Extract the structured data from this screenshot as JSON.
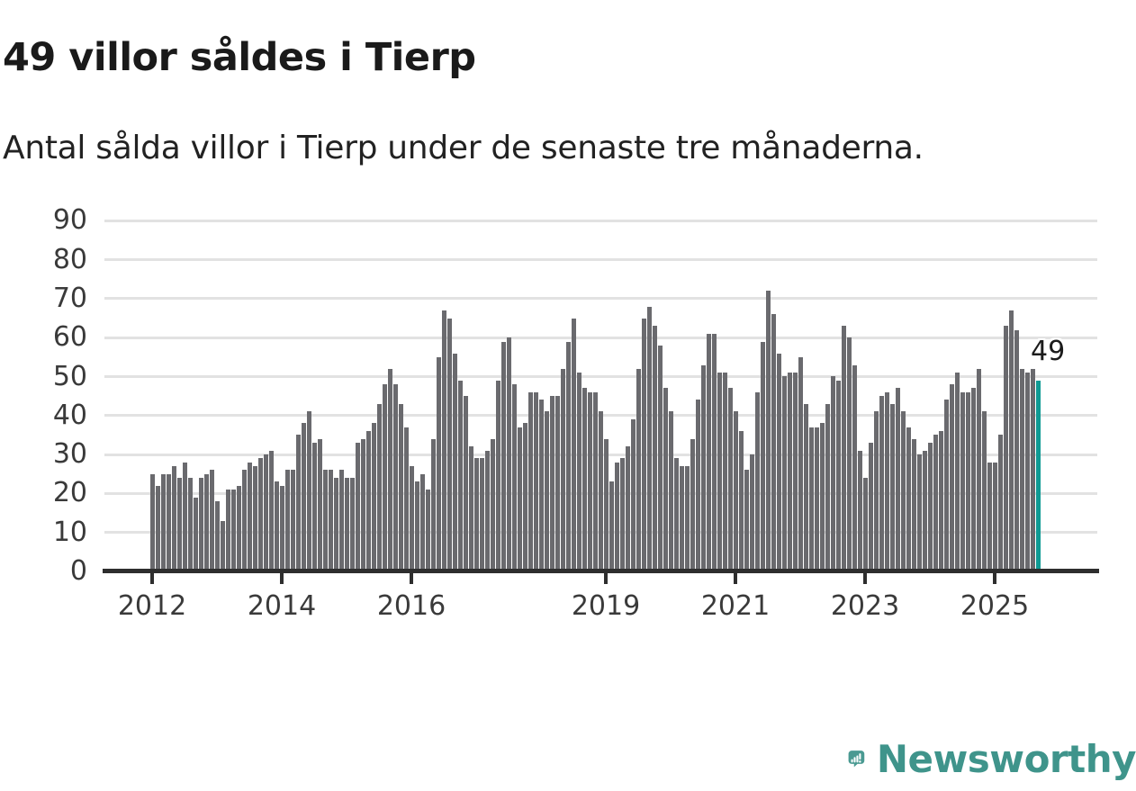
{
  "title": "49 villor såldes i Tierp",
  "subtitle": "Antal sålda villor i Tierp under de senaste tre månaderna.",
  "annotation": {
    "last_value_label": "49"
  },
  "colors": {
    "bar": "#6a6a6e",
    "highlight": "#0f9a94",
    "gridline": "#e2e2e2",
    "axis": "#2e2e2e",
    "logo_teal": "#4a9a92",
    "logo_text": "#3f948b"
  },
  "chart_data": {
    "type": "bar",
    "title": "49 villor såldes i Tierp",
    "subtitle": "Antal sålda villor i Tierp under de senaste tre månaderna.",
    "xlabel": "",
    "ylabel": "",
    "ylim": [
      0,
      90
    ],
    "y_ticks": [
      0,
      10,
      20,
      30,
      40,
      50,
      60,
      70,
      80,
      90
    ],
    "x_tick_years": [
      2012,
      2014,
      2016,
      2019,
      2021,
      2023,
      2025
    ],
    "grid": "horizontal",
    "legend": "none",
    "series_note": "rullande 3-månaderssumma per månad",
    "start_month": "2012-01",
    "years": [
      {
        "year": 2012,
        "values": [
          25,
          22,
          25,
          25,
          27,
          24,
          28,
          24,
          19,
          24,
          25,
          26
        ]
      },
      {
        "year": 2013,
        "values": [
          18,
          13,
          21,
          21,
          22,
          26,
          28,
          27,
          29,
          30,
          31,
          23
        ]
      },
      {
        "year": 2014,
        "values": [
          22,
          26,
          26,
          35,
          38,
          41,
          33,
          34,
          26,
          26,
          24,
          26
        ]
      },
      {
        "year": 2015,
        "values": [
          24,
          24,
          33,
          34,
          36,
          38,
          43,
          48,
          52,
          48,
          43,
          37
        ]
      },
      {
        "year": 2016,
        "values": [
          27,
          23,
          25,
          21,
          34,
          55,
          67,
          65,
          56,
          49,
          45,
          32
        ]
      },
      {
        "year": 2017,
        "values": [
          29,
          29,
          31,
          34,
          49,
          59,
          60,
          48,
          37,
          38,
          46,
          46
        ]
      },
      {
        "year": 2018,
        "values": [
          44,
          41,
          45,
          45,
          52,
          59,
          65,
          51,
          47,
          46,
          46,
          41
        ]
      },
      {
        "year": 2019,
        "values": [
          34,
          23,
          28,
          29,
          32,
          39,
          52,
          65,
          68,
          63,
          58,
          47
        ]
      },
      {
        "year": 2020,
        "values": [
          41,
          29,
          27,
          27,
          34,
          44,
          53,
          61,
          61,
          51,
          51,
          47
        ]
      },
      {
        "year": 2021,
        "values": [
          41,
          36,
          26,
          30,
          46,
          59,
          72,
          66,
          56,
          50,
          51,
          51
        ]
      },
      {
        "year": 2022,
        "values": [
          55,
          43,
          37,
          37,
          38,
          43,
          50,
          49,
          63,
          60,
          53,
          31
        ]
      },
      {
        "year": 2023,
        "values": [
          24,
          33,
          41,
          45,
          46,
          43,
          47,
          41,
          37,
          34,
          30,
          31
        ]
      },
      {
        "year": 2024,
        "values": [
          33,
          35,
          36,
          44,
          48,
          51,
          46,
          46,
          47,
          52,
          41,
          28
        ]
      },
      {
        "year": 2025,
        "values": [
          28,
          35,
          63,
          67,
          62,
          52,
          51,
          52,
          49
        ]
      }
    ],
    "highlight": {
      "position": "last",
      "value": 49,
      "label": "49"
    }
  },
  "logo": {
    "icon": "newsworthy-bubble-bars-icon",
    "text": "Newsworthy"
  }
}
